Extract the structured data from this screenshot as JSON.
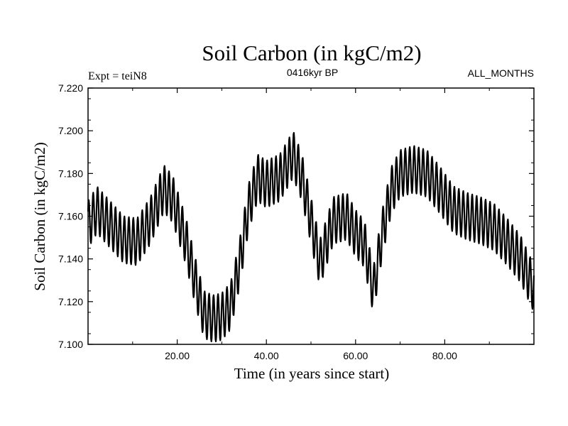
{
  "chart_data": {
    "type": "line",
    "title": "Soil Carbon (in kgC/m2)",
    "subtitle_left": "Expt = teiN8",
    "subtitle_center": "0416kyr BP",
    "subtitle_right": "ALL_MONTHS",
    "xlabel": "Time (in years since start)",
    "ylabel": "Soil Carbon (in kgC/m2)",
    "xlim": [
      0,
      100
    ],
    "ylim": [
      7.1,
      7.22
    ],
    "xticks": [
      20,
      40,
      60,
      80
    ],
    "xtick_labels": [
      "20.00",
      "40.00",
      "60.00",
      "80.00"
    ],
    "yticks": [
      7.1,
      7.12,
      7.14,
      7.16,
      7.18,
      7.2,
      7.22
    ],
    "ytick_labels": [
      "7.100",
      "7.120",
      "7.140",
      "7.160",
      "7.180",
      "7.200",
      "7.220"
    ],
    "grid": false,
    "series_note": "annual-cycle oscillation around a slowly varying mean",
    "series": [
      {
        "name": "Soil Carbon",
        "annual_amplitude": 0.011,
        "samples_per_year": 12,
        "mean_x": [
          0,
          2,
          5,
          8,
          11,
          14,
          17,
          19,
          22,
          24,
          26,
          28,
          30,
          32,
          34,
          36,
          38,
          40,
          43,
          46,
          48,
          50,
          52,
          55,
          58,
          60,
          62,
          64,
          66,
          68,
          70,
          73,
          76,
          79,
          82,
          85,
          88,
          91,
          94,
          97,
          100
        ],
        "mean_y": [
          7.156,
          7.163,
          7.156,
          7.149,
          7.148,
          7.158,
          7.173,
          7.168,
          7.148,
          7.13,
          7.114,
          7.112,
          7.113,
          7.118,
          7.138,
          7.164,
          7.178,
          7.175,
          7.178,
          7.189,
          7.178,
          7.158,
          7.138,
          7.158,
          7.16,
          7.152,
          7.147,
          7.125,
          7.152,
          7.172,
          7.18,
          7.182,
          7.18,
          7.172,
          7.163,
          7.16,
          7.158,
          7.155,
          7.148,
          7.14,
          7.126
        ]
      }
    ]
  }
}
